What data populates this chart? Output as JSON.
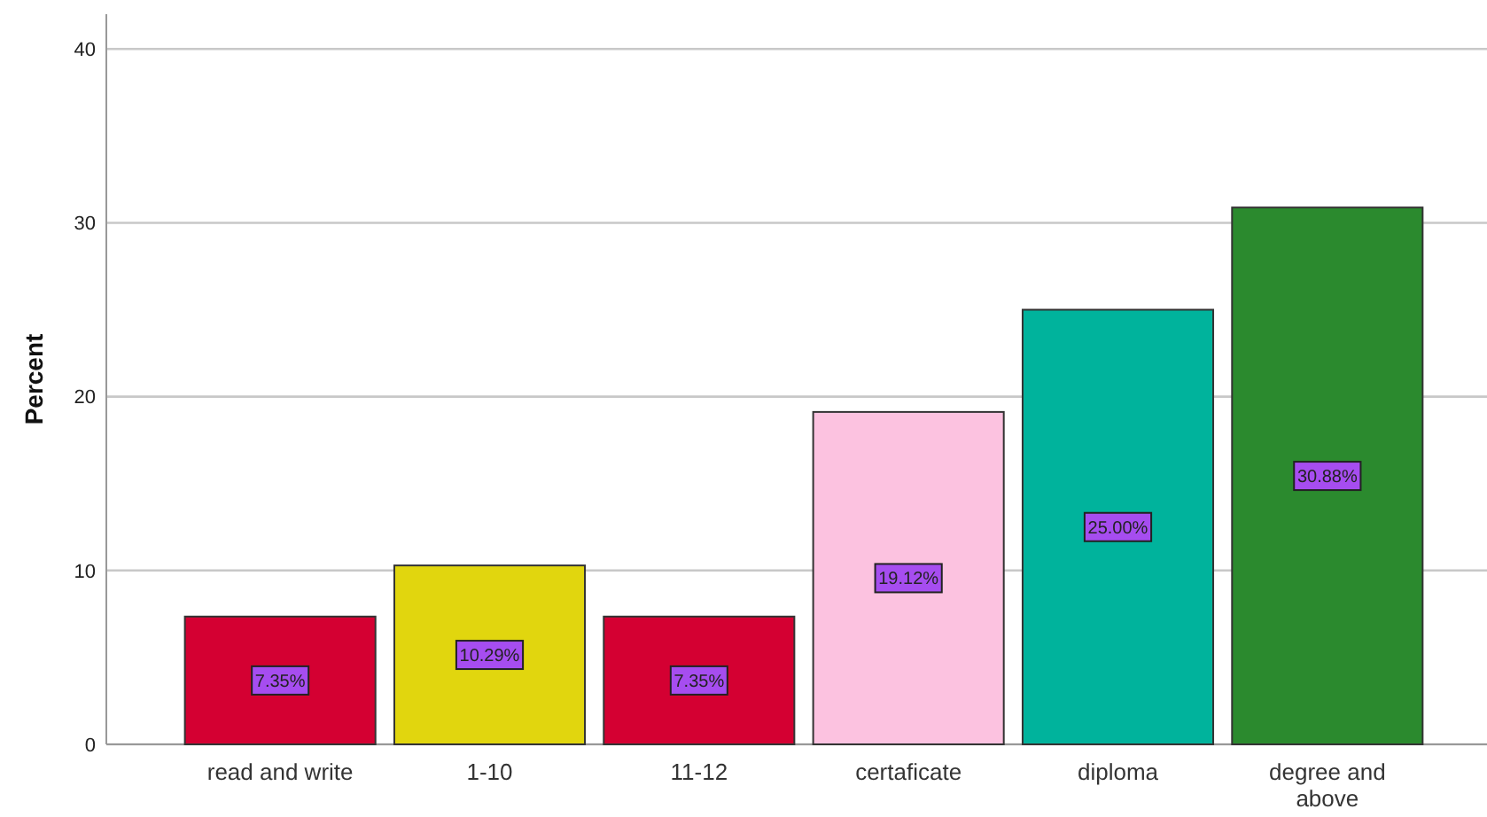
{
  "chart_data": {
    "type": "bar",
    "ylabel": "Percent",
    "categories": [
      "read and write",
      "1-10",
      "11-12",
      "certaficate",
      "diploma",
      "degree and above"
    ],
    "values": [
      7.35,
      10.29,
      7.35,
      19.12,
      25.0,
      30.88
    ],
    "colors": [
      "#d40032",
      "#e1d60e",
      "#d40032",
      "#fcc2e0",
      "#00b39c",
      "#2b8a2e"
    ],
    "value_labels": [
      "7.35%",
      "10.29%",
      "7.35%",
      "19.12%",
      "25.00%",
      "30.88%"
    ],
    "ylim": [
      0,
      42
    ],
    "yticks": [
      0,
      10,
      20,
      30,
      40
    ],
    "grid": "y"
  }
}
